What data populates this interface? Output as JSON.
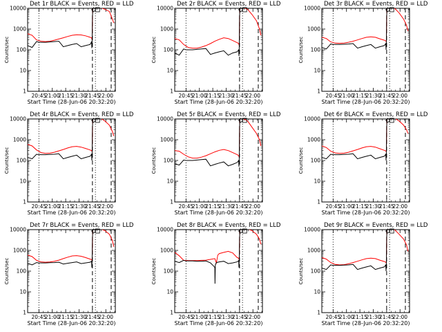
{
  "chart_data": {
    "type": "line",
    "layout": "3x3 grid",
    "shared": {
      "ylabel": "Counts/sec",
      "xlabel": "Start Time (28-Jun-06 20:32:20)",
      "x_unit": "seconds since start time",
      "x_tick_labels": [
        "20:45",
        "21:00",
        "21:15",
        "21:30",
        "21:45",
        "22:00"
      ],
      "x_ticks": [
        760,
        1660,
        2560,
        3460,
        4360,
        5260
      ],
      "y_scale": "log",
      "y_ticks": [
        1,
        10,
        100,
        1000,
        10000
      ],
      "y_tick_labels": [
        "1",
        "10",
        "100",
        "1000",
        "10000"
      ],
      "ylim": [
        1,
        10000
      ],
      "xlim": [
        0,
        5900
      ],
      "line_colors": {
        "events": "#000000",
        "lld": "#ff0000"
      },
      "vlines": [
        {
          "x": 760,
          "style": "dotted"
        },
        {
          "x": 4360,
          "style": "dashed"
        },
        {
          "x": 4560,
          "style": "dotted"
        },
        {
          "x": 5620,
          "style": "dashed"
        }
      ],
      "symbol_x": [
        4440,
        4700
      ]
    },
    "panels": [
      {
        "title": "Det 1r BLACK = Events, RED = LLD",
        "black": {
          "x": [
            0,
            300,
            600,
            760,
            900,
            1200,
            1500,
            1800,
            2100,
            2400,
            2700,
            3000,
            3300,
            3600,
            3900,
            4200,
            4300,
            4320,
            4340,
            4360,
            4380,
            4420,
            4460
          ],
          "y": [
            160,
            130,
            250,
            230,
            230,
            230,
            240,
            250,
            260,
            140,
            160,
            180,
            200,
            140,
            160,
            180,
            240,
            120,
            250,
            4000,
            9000,
            12000,
            12000
          ]
        },
        "red": {
          "x": [
            0,
            300,
            600,
            900,
            1200,
            1500,
            1800,
            2100,
            2400,
            2700,
            3000,
            3300,
            3600,
            3900,
            4200,
            4300,
            4340,
            4360,
            4380,
            4420,
            4460,
            4900,
            5200,
            5500,
            5700,
            5800
          ],
          "y": [
            600,
            500,
            300,
            260,
            250,
            260,
            290,
            330,
            380,
            440,
            500,
            530,
            520,
            470,
            400,
            380,
            300,
            4000,
            9000,
            12000,
            12000,
            11000,
            9000,
            7000,
            3000,
            2000
          ]
        }
      },
      {
        "title": "Det 2r BLACK = Events, RED = LLD",
        "black": {
          "x": [
            0,
            300,
            600,
            760,
            900,
            1200,
            1500,
            1800,
            2100,
            2400,
            2700,
            3000,
            3300,
            3600,
            3900,
            4200,
            4300,
            4320,
            4340,
            4360,
            4380,
            4420,
            4460
          ],
          "y": [
            70,
            55,
            110,
            100,
            100,
            100,
            105,
            110,
            115,
            60,
            70,
            80,
            90,
            55,
            70,
            80,
            100,
            50,
            110,
            4000,
            9000,
            12000,
            12000
          ]
        },
        "red": {
          "x": [
            0,
            300,
            600,
            900,
            1200,
            1500,
            1800,
            2100,
            2400,
            2700,
            3000,
            3300,
            3600,
            3900,
            4200,
            4300,
            4340,
            4360,
            4380,
            4420,
            4460,
            4900,
            5200,
            5500,
            5700,
            5800
          ],
          "y": [
            350,
            300,
            180,
            130,
            120,
            120,
            135,
            160,
            200,
            260,
            320,
            380,
            350,
            280,
            220,
            200,
            160,
            4000,
            9000,
            12000,
            12000,
            9000,
            5000,
            2500,
            1000,
            500
          ]
        }
      },
      {
        "title": "Det 3r BLACK = Events, RED = LLD",
        "black": {
          "x": [
            0,
            300,
            600,
            760,
            900,
            1200,
            1500,
            1800,
            2100,
            2400,
            2700,
            3000,
            3300,
            3600,
            3900,
            4200,
            4300,
            4320,
            4340,
            4360,
            4380,
            4420,
            4460
          ],
          "y": [
            130,
            110,
            190,
            180,
            180,
            180,
            185,
            190,
            200,
            120,
            140,
            160,
            180,
            120,
            140,
            160,
            200,
            100,
            210,
            4000,
            9000,
            12000,
            12000
          ]
        },
        "red": {
          "x": [
            0,
            300,
            600,
            900,
            1200,
            1500,
            1800,
            2100,
            2400,
            2700,
            3000,
            3300,
            3600,
            3900,
            4200,
            4300,
            4340,
            4360,
            4380,
            4420,
            4460,
            4900,
            5200,
            5500,
            5700,
            5800
          ],
          "y": [
            400,
            350,
            240,
            210,
            205,
            210,
            230,
            260,
            300,
            350,
            400,
            420,
            400,
            340,
            290,
            270,
            240,
            4000,
            9000,
            12000,
            12000,
            10000,
            6000,
            3000,
            1500,
            800
          ]
        }
      },
      {
        "title": "Det 4r BLACK = Events, RED = LLD",
        "black": {
          "x": [
            0,
            300,
            600,
            760,
            900,
            1200,
            1500,
            1800,
            2100,
            2400,
            2700,
            3000,
            3300,
            3600,
            3900,
            4200,
            4300,
            4320,
            4340,
            4360,
            4380,
            4420,
            4460
          ],
          "y": [
            140,
            120,
            200,
            190,
            190,
            190,
            195,
            200,
            210,
            120,
            140,
            160,
            180,
            120,
            140,
            160,
            200,
            100,
            220,
            4000,
            9000,
            12000,
            12000
          ]
        },
        "red": {
          "x": [
            0,
            300,
            600,
            900,
            1200,
            1500,
            1800,
            2100,
            2400,
            2700,
            3000,
            3300,
            3600,
            3900,
            4200,
            4300,
            4340,
            4360,
            4380,
            4420,
            4460,
            4900,
            5200,
            5500,
            5700,
            5800
          ],
          "y": [
            600,
            500,
            320,
            240,
            220,
            225,
            250,
            290,
            340,
            400,
            460,
            480,
            440,
            380,
            320,
            300,
            270,
            4000,
            9000,
            12000,
            12000,
            11000,
            8000,
            5000,
            2500,
            1500
          ]
        }
      },
      {
        "title": "Det 5r BLACK = Events, RED = LLD",
        "black": {
          "x": [
            0,
            300,
            600,
            760,
            900,
            1200,
            1500,
            1800,
            2100,
            2400,
            2700,
            3000,
            3300,
            3600,
            3900,
            4200,
            4300,
            4320,
            4340,
            4360,
            4380,
            4420,
            4460
          ],
          "y": [
            70,
            60,
            105,
            100,
            100,
            100,
            105,
            110,
            115,
            55,
            65,
            75,
            85,
            55,
            65,
            80,
            100,
            50,
            110,
            4000,
            9000,
            12000,
            12000
          ]
        },
        "red": {
          "x": [
            0,
            300,
            600,
            900,
            1200,
            1500,
            1800,
            2100,
            2400,
            2700,
            3000,
            3300,
            3600,
            3900,
            4200,
            4300,
            4340,
            4360,
            4380,
            4420,
            4460,
            4900,
            5200,
            5500,
            5700,
            5800
          ],
          "y": [
            300,
            280,
            200,
            150,
            130,
            130,
            145,
            170,
            210,
            260,
            310,
            340,
            300,
            240,
            190,
            170,
            140,
            4000,
            9000,
            12000,
            12000,
            8000,
            4000,
            2000,
            1000,
            500
          ]
        }
      },
      {
        "title": "Det 6r BLACK = Events, RED = LLD",
        "black": {
          "x": [
            0,
            300,
            600,
            760,
            900,
            1200,
            1500,
            1800,
            2100,
            2400,
            2700,
            3000,
            3300,
            3600,
            3900,
            4200,
            4300,
            4320,
            4340,
            4360,
            4380,
            4420,
            4460
          ],
          "y": [
            140,
            120,
            200,
            190,
            190,
            190,
            195,
            200,
            210,
            120,
            140,
            160,
            180,
            120,
            140,
            160,
            200,
            100,
            220,
            4000,
            9000,
            12000,
            12000
          ]
        },
        "red": {
          "x": [
            0,
            300,
            600,
            900,
            1200,
            1500,
            1800,
            2100,
            2400,
            2700,
            3000,
            3300,
            3600,
            3900,
            4200,
            4300,
            4340,
            4360,
            4380,
            4420,
            4460,
            4900,
            5200,
            5500,
            5700,
            5800
          ],
          "y": [
            500,
            420,
            280,
            230,
            220,
            225,
            250,
            290,
            340,
            400,
            460,
            480,
            440,
            370,
            310,
            290,
            260,
            4000,
            9000,
            12000,
            12000,
            11000,
            8000,
            5000,
            3000,
            2000
          ]
        }
      },
      {
        "title": "Det 7r BLACK = Events, RED = LLD",
        "black": {
          "x": [
            0,
            300,
            600,
            760,
            900,
            1200,
            1500,
            1800,
            2100,
            2400,
            2700,
            3000,
            3300,
            3600,
            3900,
            4200,
            4300,
            4320,
            4340,
            4360,
            4380,
            4420,
            4460
          ],
          "y": [
            240,
            200,
            260,
            250,
            250,
            250,
            255,
            260,
            270,
            220,
            240,
            260,
            280,
            230,
            250,
            270,
            300,
            150,
            330,
            4000,
            9000,
            12000,
            12000
          ]
        },
        "red": {
          "x": [
            0,
            300,
            600,
            900,
            1200,
            1500,
            1800,
            2100,
            2400,
            2700,
            3000,
            3300,
            3600,
            3900,
            4200,
            4300,
            4340,
            4360,
            4380,
            4420,
            4460,
            4900,
            5200,
            5500,
            5700,
            5800
          ],
          "y": [
            600,
            500,
            330,
            280,
            270,
            275,
            300,
            340,
            400,
            470,
            540,
            560,
            520,
            450,
            380,
            360,
            320,
            4000,
            9000,
            12000,
            12000,
            11000,
            9000,
            6000,
            3000,
            1500
          ]
        }
      },
      {
        "title": "Det 8r BLACK = Events, RED = LLD",
        "black": {
          "x": [
            0,
            300,
            600,
            760,
            900,
            1200,
            1500,
            1800,
            2100,
            2400,
            2600,
            2700,
            2710,
            2730,
            2800,
            3000,
            3300,
            3600,
            3900,
            4200,
            4300,
            4320,
            4340,
            4360,
            4380,
            4420,
            4460
          ],
          "y": [
            300,
            260,
            330,
            310,
            310,
            310,
            300,
            300,
            310,
            250,
            180,
            150,
            25,
            200,
            260,
            280,
            300,
            230,
            250,
            280,
            320,
            150,
            330,
            4000,
            9000,
            12000,
            12000
          ]
        },
        "red": {
          "x": [
            0,
            300,
            600,
            900,
            1200,
            1500,
            1800,
            2100,
            2400,
            2700,
            2800,
            2900,
            3000,
            3300,
            3600,
            3900,
            4200,
            4300,
            4340,
            4360,
            4380,
            4420,
            4460,
            4900,
            5200,
            5500,
            5700,
            5800
          ],
          "y": [
            800,
            550,
            330,
            320,
            320,
            320,
            330,
            340,
            370,
            400,
            250,
            600,
            700,
            800,
            900,
            750,
            450,
            420,
            350,
            4000,
            9000,
            12000,
            12000,
            11000,
            9000,
            6000,
            3500,
            2000
          ]
        }
      },
      {
        "title": "Det 9r BLACK = Events, RED = LLD",
        "black": {
          "x": [
            0,
            300,
            600,
            760,
            900,
            1200,
            1500,
            1800,
            2100,
            2400,
            2700,
            3000,
            3300,
            3600,
            3900,
            4200,
            4300,
            4320,
            4340,
            4360,
            4380,
            4420,
            4460
          ],
          "y": [
            140,
            120,
            200,
            190,
            190,
            190,
            195,
            200,
            210,
            120,
            140,
            160,
            180,
            120,
            140,
            160,
            200,
            100,
            220,
            4000,
            9000,
            12000,
            12000
          ]
        },
        "red": {
          "x": [
            0,
            300,
            600,
            900,
            1200,
            1500,
            1800,
            2100,
            2400,
            2700,
            3000,
            3300,
            3600,
            3900,
            4200,
            4300,
            4340,
            4360,
            4380,
            4420,
            4460,
            4900,
            5200,
            5500,
            5700,
            5800
          ],
          "y": [
            450,
            380,
            260,
            210,
            200,
            205,
            225,
            260,
            300,
            350,
            400,
            420,
            400,
            340,
            290,
            270,
            240,
            4000,
            9000,
            12000,
            12000,
            10000,
            6000,
            3500,
            1800,
            900
          ]
        }
      }
    ]
  }
}
